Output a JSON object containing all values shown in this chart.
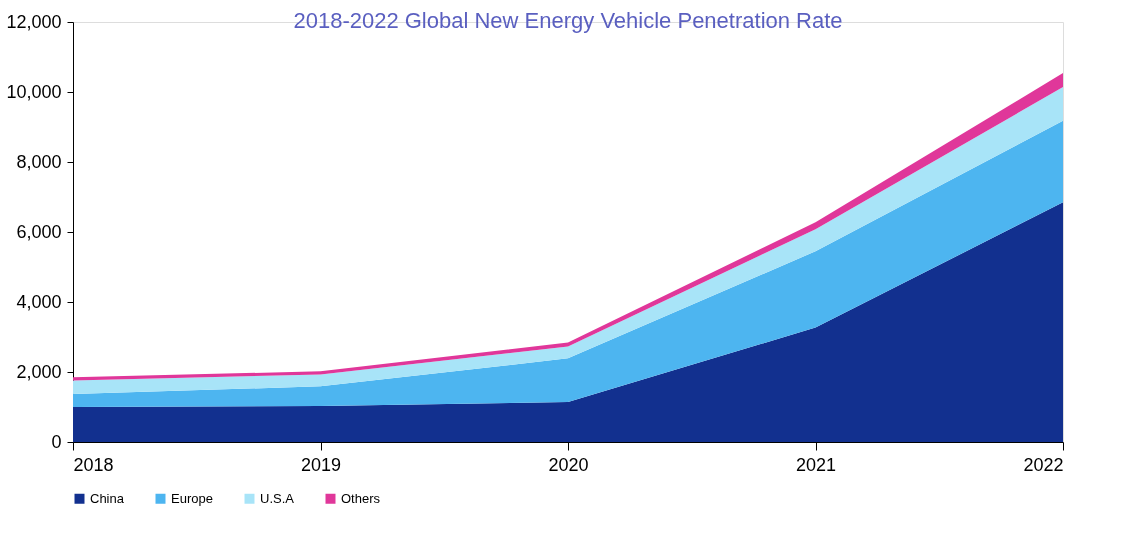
{
  "chart_data": {
    "type": "area",
    "title": "2018-2022 Global New Energy Vehicle Penetration Rate",
    "x": [
      2018,
      2019,
      2020,
      2021,
      2022
    ],
    "stacked": true,
    "series": [
      {
        "name": "China",
        "color": "#12308f",
        "values": [
          1000,
          1030,
          1140,
          3270,
          6850
        ]
      },
      {
        "name": "Europe",
        "color": "#4db5f0",
        "values": [
          370,
          560,
          1250,
          2180,
          2330
        ]
      },
      {
        "name": "U.S.A",
        "color": "#a8e4f8",
        "values": [
          390,
          340,
          340,
          630,
          960
        ]
      },
      {
        "name": "Others",
        "color": "#e0379a",
        "values": [
          90,
          90,
          110,
          200,
          400
        ]
      }
    ],
    "xlim": [
      2018,
      2022
    ],
    "xticks": [
      2018,
      2019,
      2020,
      2021,
      2022
    ],
    "ylim": [
      0,
      12000
    ],
    "yticks": [
      0,
      {
        "value": 2000,
        "label": "2,000"
      },
      {
        "value": 4000,
        "label": "4,000"
      },
      {
        "value": 6000,
        "label": "6,000"
      },
      {
        "value": 8000,
        "label": "8,000"
      },
      {
        "value": 10000,
        "label": "10,000"
      },
      {
        "value": 12000,
        "label": "12,000"
      }
    ],
    "grid": false,
    "legend": "bottom"
  }
}
